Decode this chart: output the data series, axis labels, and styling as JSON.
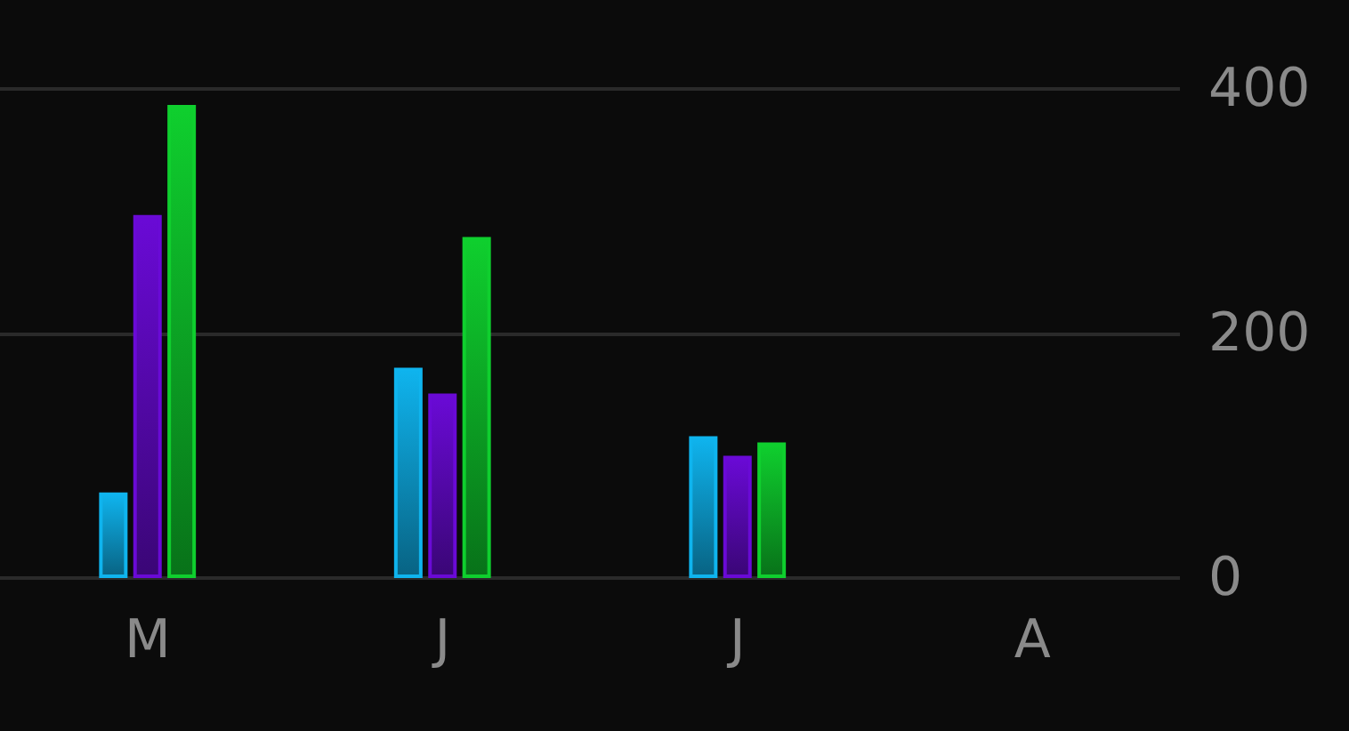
{
  "chart_data": {
    "type": "bar",
    "categories": [
      "M",
      "J",
      "J",
      "A"
    ],
    "series": [
      {
        "color": "#0fb4ee",
        "values": [
          70,
          172,
          116,
          null
        ]
      },
      {
        "color": "#6a0ad6",
        "values": [
          297,
          151,
          100,
          null
        ]
      },
      {
        "color": "#0fcf2e",
        "values": [
          387,
          279,
          111,
          null
        ]
      }
    ],
    "ylim": [
      0,
      400
    ],
    "yticks": [
      0,
      200,
      400
    ],
    "grid": "y"
  }
}
